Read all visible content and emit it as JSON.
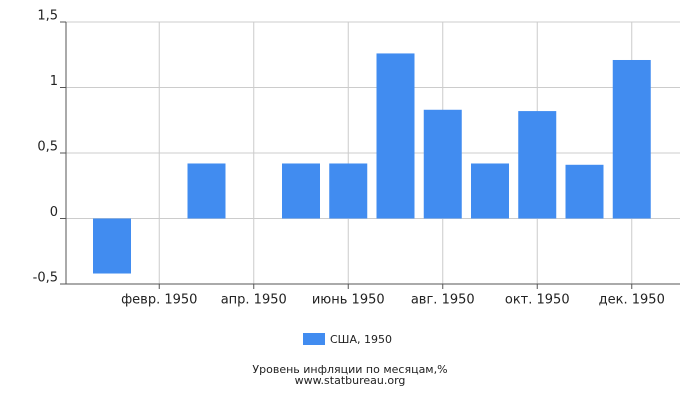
{
  "chart_data": {
    "type": "bar",
    "categories": [
      null,
      "февр. 1950",
      null,
      "апр. 1950",
      null,
      "июнь 1950",
      null,
      "авг. 1950",
      null,
      "окт. 1950",
      null,
      "дек. 1950"
    ],
    "series": [
      {
        "name": "США, 1950",
        "color": "#418cf0",
        "values": [
          -0.42,
          0,
          0.42,
          0,
          0.42,
          0.42,
          1.26,
          0.83,
          0.42,
          0.82,
          0.41,
          1.21
        ]
      }
    ],
    "ylim": [
      -0.5,
      1.5
    ],
    "yticks": [
      {
        "value": -0.5,
        "label": "-0,5"
      },
      0,
      {
        "value": 0.5,
        "label": "0,5"
      },
      1,
      {
        "value": 1.5,
        "label": "1,5"
      }
    ],
    "grid": true,
    "legend": "bottom",
    "footer": [
      "Уровень инфляции по месяцам,%",
      "www.statbureau.org"
    ]
  }
}
